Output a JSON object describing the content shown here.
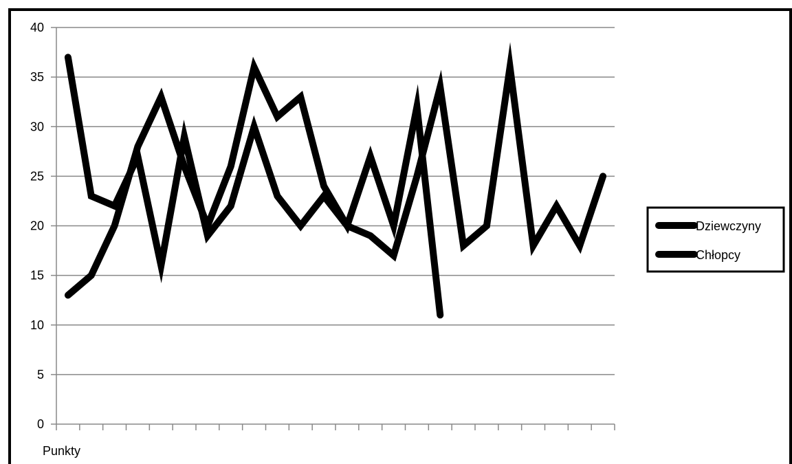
{
  "chart_data": {
    "type": "line",
    "title": "",
    "xlabel": "Punkty",
    "ylabel": "",
    "ylim": [
      0,
      40
    ],
    "yticks": [
      0,
      5,
      10,
      15,
      20,
      25,
      30,
      35,
      40
    ],
    "x_count": 24,
    "grid": true,
    "legend_position": "right",
    "series": [
      {
        "name": "Dziewczyny",
        "color": "#000000",
        "values": [
          13,
          15,
          20,
          28,
          33,
          26,
          20,
          26,
          36,
          31,
          33,
          24,
          20,
          27,
          20,
          32,
          11
        ]
      },
      {
        "name": "Chłopcy",
        "color": "#000000",
        "values": [
          37,
          23,
          22,
          27,
          16,
          29,
          19,
          22,
          30,
          23,
          20,
          23,
          20,
          19,
          17,
          25,
          34,
          18,
          20,
          36,
          18,
          22,
          18,
          25
        ]
      }
    ]
  }
}
